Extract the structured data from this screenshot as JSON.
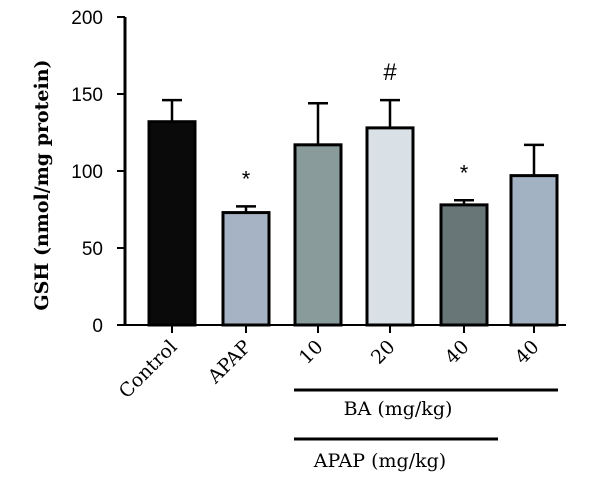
{
  "chart_data": {
    "type": "bar",
    "ylabel": "GSH (nmol/mg protein)",
    "ylim": [
      0,
      200
    ],
    "yticks": [
      0,
      50,
      100,
      150,
      200
    ],
    "categories": [
      "Control",
      "APAP",
      "10",
      "20",
      "40",
      "40"
    ],
    "values": [
      132,
      73,
      117,
      128,
      78,
      97
    ],
    "errors": [
      14,
      4,
      27,
      18,
      3,
      20
    ],
    "annotations": [
      "",
      "*",
      "",
      "#",
      "*",
      ""
    ],
    "bar_colors": [
      "#0a0a0a",
      "#a6b3c4",
      "#8a9b9c",
      "#d9e0e6",
      "#687677",
      "#a3b2c2"
    ],
    "group_labels": [
      {
        "text": "BA (mg/kg)",
        "from": 2,
        "to": 5
      },
      {
        "text": "APAP (mg/kg)",
        "from": 2,
        "to": 4
      }
    ]
  }
}
